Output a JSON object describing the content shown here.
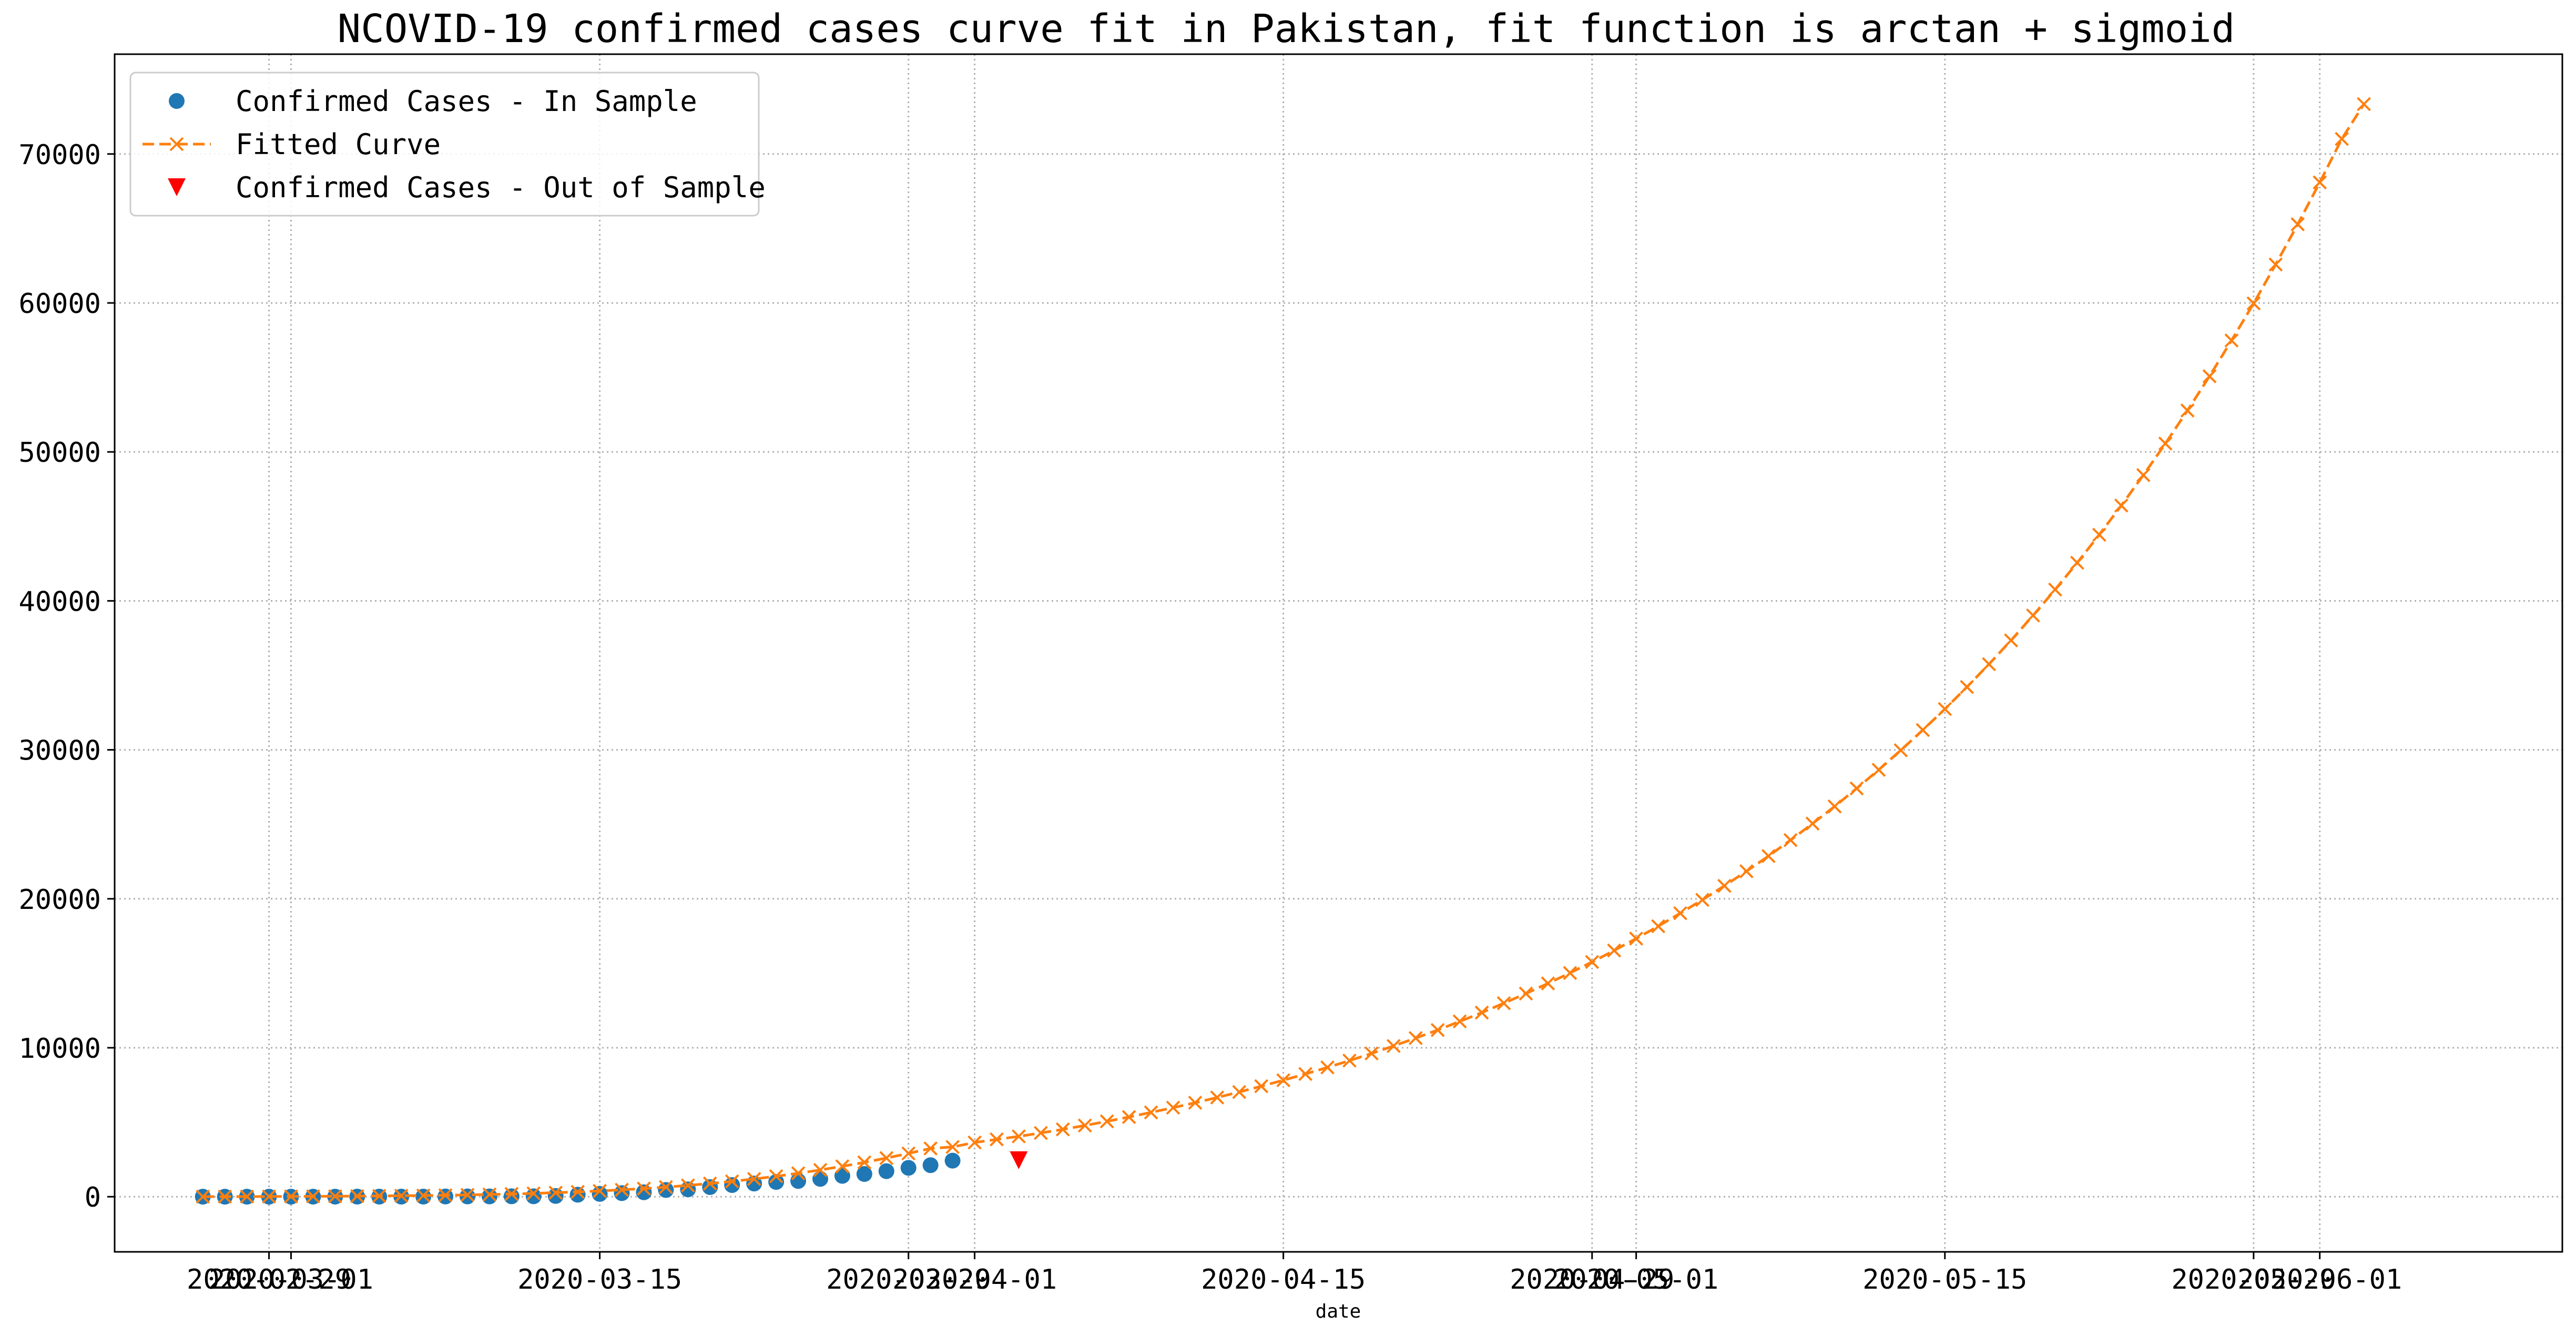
{
  "chart_data": {
    "type": "line",
    "title": "NCOVID-19 confirmed cases curve fit in Pakistan, fit function is arctan + sigmoid",
    "xlabel": "date",
    "ylabel": "",
    "x_start": "2020-02-26",
    "xlim": [
      "2020-02-22",
      "2020-06-12"
    ],
    "ylim": [
      -3700,
      76700
    ],
    "grid": true,
    "grid_style": "dotted",
    "legend_position": "top-left",
    "x_ticks": [
      {
        "date": "2020-02-29",
        "label": "2020-02-29"
      },
      {
        "date": "2020-03-01",
        "label": "2020-03-01"
      },
      {
        "date": "2020-03-15",
        "label": "2020-03-15"
      },
      {
        "date": "2020-03-29",
        "label": "2020-03-29"
      },
      {
        "date": "2020-04-01",
        "label": "2020-04-01"
      },
      {
        "date": "2020-04-15",
        "label": "2020-04-15"
      },
      {
        "date": "2020-04-29",
        "label": "2020-04-29"
      },
      {
        "date": "2020-05-01",
        "label": "2020-05-01"
      },
      {
        "date": "2020-05-15",
        "label": "2020-05-15"
      },
      {
        "date": "2020-05-29",
        "label": "2020-05-29"
      },
      {
        "date": "2020-06-01",
        "label": "2020-06-01"
      }
    ],
    "y_ticks": [
      {
        "value": 0,
        "label": "0"
      },
      {
        "value": 10000,
        "label": "10000"
      },
      {
        "value": 20000,
        "label": "20000"
      },
      {
        "value": 30000,
        "label": "30000"
      },
      {
        "value": 40000,
        "label": "40000"
      },
      {
        "value": 50000,
        "label": "50000"
      },
      {
        "value": 60000,
        "label": "60000"
      },
      {
        "value": 70000,
        "label": "70000"
      }
    ],
    "series": [
      {
        "name": "Confirmed Cases - In Sample",
        "marker": "circle",
        "color": "#1f77b4",
        "values": [
          2,
          2,
          4,
          4,
          4,
          5,
          5,
          6,
          6,
          6,
          6,
          16,
          19,
          20,
          28,
          31,
          53,
          136,
          187,
          241,
          299,
          454,
          495,
          646,
          784,
          887,
          991,
          1057,
          1197,
          1402,
          1526,
          1717,
          1938,
          2118,
          2421
        ]
      },
      {
        "name": "Fitted Curve",
        "marker": "x",
        "line_style": "dashed",
        "color": "#ff7f0e",
        "values": [
          5,
          8,
          11,
          15,
          20,
          26,
          33,
          42,
          53,
          66,
          82,
          101,
          124,
          152,
          185,
          224,
          271,
          325,
          389,
          463,
          549,
          647,
          759,
          887,
          1031,
          1193,
          1374,
          1575,
          1797,
          2041,
          2307,
          2596,
          2908,
          3243,
          3340,
          3640,
          3850,
          4050,
          4280,
          4520,
          4780,
          5060,
          5350,
          5660,
          5980,
          6310,
          6660,
          7030,
          7420,
          7820,
          8240,
          8680,
          9140,
          9620,
          10120,
          10650,
          11190,
          11770,
          12360,
          12990,
          13640,
          14320,
          15020,
          15760,
          16530,
          17330,
          18160,
          19030,
          19930,
          20870,
          21850,
          22870,
          23940,
          25050,
          26200,
          27410,
          28660,
          29970,
          31330,
          32740,
          34220,
          35750,
          37350,
          39020,
          40760,
          42560,
          44440,
          46400,
          48440,
          50560,
          52780,
          55080,
          57480,
          59970,
          62580,
          65280,
          68090,
          71010,
          73350
        ]
      },
      {
        "name": "Confirmed Cases - Out of Sample",
        "marker": "triangle-down",
        "color": "#ff0000",
        "points": [
          {
            "day_index": 37,
            "value": 2450
          }
        ]
      }
    ]
  }
}
